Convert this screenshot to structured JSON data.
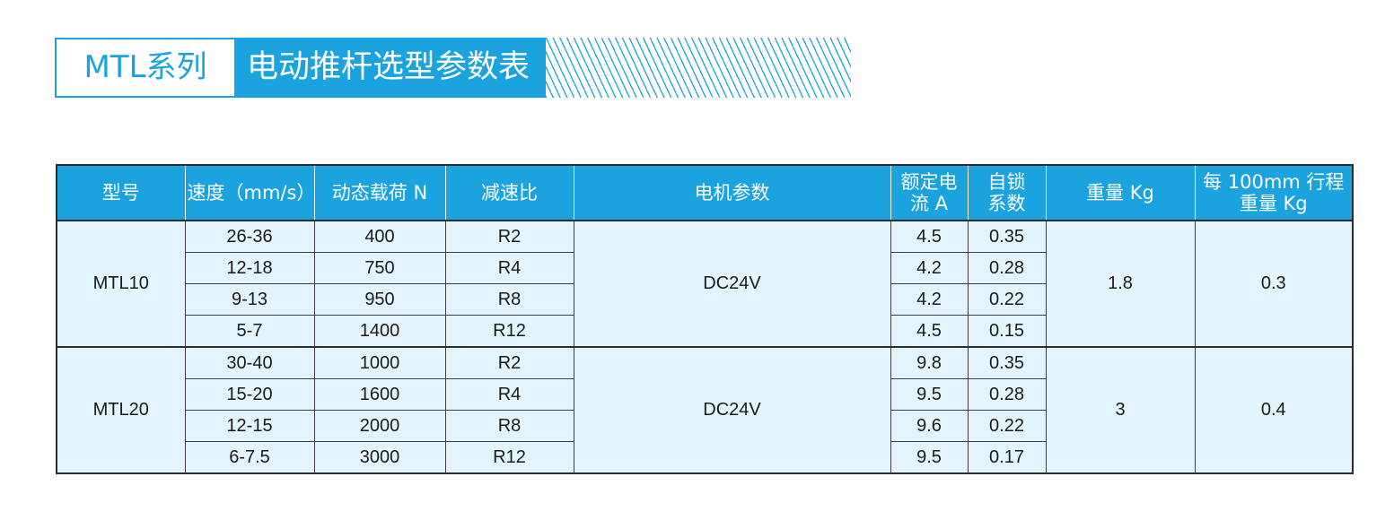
{
  "title": {
    "series": "MTL系列",
    "main": "电动推杆选型参数表"
  },
  "table": {
    "headers": [
      "型号",
      "速度（mm/s）",
      "动态载荷 N",
      "减速比",
      "电机参数",
      [
        "额定电",
        "流 A"
      ],
      [
        "自锁",
        "系数"
      ],
      "重量 Kg",
      [
        "每 100mm 行程",
        "重量 Kg"
      ]
    ],
    "groups": [
      {
        "model": "MTL10",
        "motor": "DC24V",
        "weight": "1.8",
        "weight_per_100mm": "0.3",
        "rows": [
          {
            "speed": "26-36",
            "load": "400",
            "ratio": "R2",
            "current": "4.5",
            "lock": "0.35"
          },
          {
            "speed": "12-18",
            "load": "750",
            "ratio": "R4",
            "current": "4.2",
            "lock": "0.28"
          },
          {
            "speed": "9-13",
            "load": "950",
            "ratio": "R8",
            "current": "4.2",
            "lock": "0.22"
          },
          {
            "speed": "5-7",
            "load": "1400",
            "ratio": "R12",
            "current": "4.5",
            "lock": "0.15"
          }
        ]
      },
      {
        "model": "MTL20",
        "motor": "DC24V",
        "weight": "3",
        "weight_per_100mm": "0.4",
        "rows": [
          {
            "speed": "30-40",
            "load": "1000",
            "ratio": "R2",
            "current": "9.8",
            "lock": "0.35"
          },
          {
            "speed": "15-20",
            "load": "1600",
            "ratio": "R4",
            "current": "9.5",
            "lock": "0.28"
          },
          {
            "speed": "12-15",
            "load": "2000",
            "ratio": "R8",
            "current": "9.6",
            "lock": "0.22"
          },
          {
            "speed": "6-7.5",
            "load": "3000",
            "ratio": "R12",
            "current": "9.5",
            "lock": "0.17"
          }
        ]
      }
    ]
  },
  "colors": {
    "accent": "#1aa3de",
    "header_bg": "#1ba3df",
    "cell_bg": "#e3f4fc",
    "border": "#2c2c2c"
  }
}
